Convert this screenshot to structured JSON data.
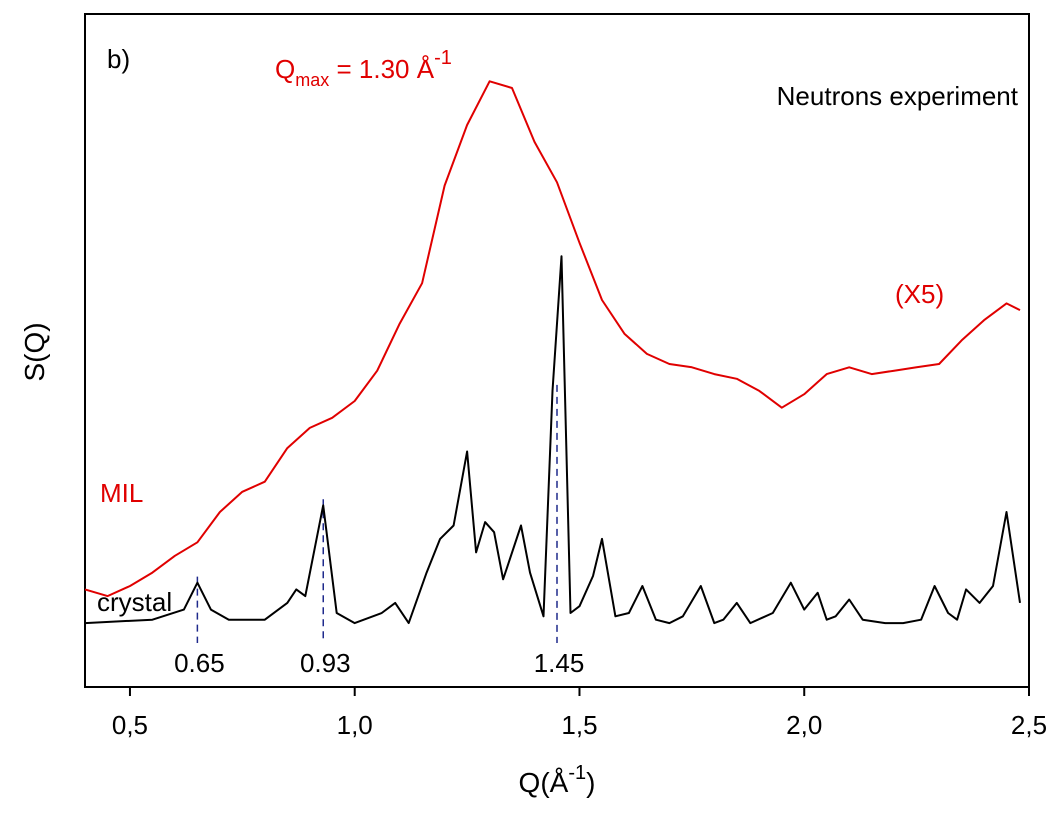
{
  "chart_data": {
    "type": "line",
    "panel_label": "b)",
    "annotation_title": "Neutrons experiment",
    "xlabel_text": "Q(Å",
    "xlabel_sup": "-1",
    "xlabel_close": ")",
    "ylabel": "S(Q)",
    "xlim": [
      0.4,
      2.5
    ],
    "x_ticks": [
      0.5,
      1.0,
      1.5,
      2.0,
      2.5
    ],
    "x_tick_labels": [
      "0,5",
      "1,0",
      "1,5",
      "2,0",
      "2,5"
    ],
    "y_ticks_shown": false,
    "qmax_label": {
      "main": "Q",
      "sub": "max",
      "rest": " = 1.30 Å",
      "sup": "-1"
    },
    "scale_label": "(X5)",
    "colors": {
      "mil": "#e00000",
      "crystal": "#000000",
      "markers": "#1f2a8c"
    },
    "series": [
      {
        "name": "MIL",
        "color": "#e00000",
        "x": [
          0.4,
          0.45,
          0.5,
          0.55,
          0.6,
          0.65,
          0.7,
          0.75,
          0.8,
          0.85,
          0.9,
          0.95,
          1.0,
          1.05,
          1.1,
          1.15,
          1.2,
          1.25,
          1.3,
          1.35,
          1.4,
          1.45,
          1.5,
          1.55,
          1.6,
          1.65,
          1.7,
          1.75,
          1.8,
          1.85,
          1.9,
          1.95,
          2.0,
          2.05,
          2.1,
          2.15,
          2.2,
          2.25,
          2.3,
          2.35,
          2.4,
          2.45,
          2.48
        ],
        "y": [
          0.145,
          0.135,
          0.15,
          0.17,
          0.195,
          0.215,
          0.26,
          0.29,
          0.305,
          0.355,
          0.385,
          0.4,
          0.425,
          0.47,
          0.54,
          0.6,
          0.745,
          0.835,
          0.9,
          0.89,
          0.81,
          0.75,
          0.66,
          0.575,
          0.525,
          0.495,
          0.48,
          0.475,
          0.465,
          0.458,
          0.44,
          0.415,
          0.435,
          0.465,
          0.475,
          0.465,
          0.47,
          0.475,
          0.48,
          0.515,
          0.545,
          0.57,
          0.56
        ]
      },
      {
        "name": "crystal",
        "color": "#000000",
        "x": [
          0.4,
          0.55,
          0.62,
          0.65,
          0.68,
          0.72,
          0.8,
          0.85,
          0.87,
          0.89,
          0.93,
          0.96,
          1.0,
          1.06,
          1.09,
          1.12,
          1.16,
          1.19,
          1.22,
          1.25,
          1.27,
          1.29,
          1.31,
          1.33,
          1.34,
          1.37,
          1.39,
          1.42,
          1.44,
          1.46,
          1.48,
          1.5,
          1.53,
          1.55,
          1.58,
          1.61,
          1.64,
          1.67,
          1.7,
          1.73,
          1.77,
          1.8,
          1.82,
          1.85,
          1.88,
          1.93,
          1.97,
          2.0,
          2.03,
          2.05,
          2.07,
          2.1,
          2.13,
          2.18,
          2.22,
          2.26,
          2.29,
          2.32,
          2.34,
          2.36,
          2.39,
          2.42,
          2.45,
          2.48
        ],
        "y": [
          0.095,
          0.1,
          0.115,
          0.155,
          0.115,
          0.1,
          0.1,
          0.125,
          0.145,
          0.135,
          0.27,
          0.11,
          0.095,
          0.11,
          0.125,
          0.095,
          0.17,
          0.22,
          0.24,
          0.35,
          0.2,
          0.245,
          0.23,
          0.16,
          0.18,
          0.24,
          0.17,
          0.105,
          0.44,
          0.64,
          0.11,
          0.12,
          0.165,
          0.22,
          0.105,
          0.11,
          0.15,
          0.1,
          0.095,
          0.105,
          0.15,
          0.095,
          0.1,
          0.125,
          0.095,
          0.11,
          0.155,
          0.115,
          0.14,
          0.1,
          0.105,
          0.13,
          0.1,
          0.095,
          0.095,
          0.1,
          0.15,
          0.11,
          0.1,
          0.145,
          0.125,
          0.15,
          0.26,
          0.125
        ]
      }
    ],
    "peak_markers": [
      {
        "x": 0.65,
        "label": "0.65"
      },
      {
        "x": 0.93,
        "label": "0.93"
      },
      {
        "x": 1.45,
        "label": "1.45"
      }
    ]
  }
}
